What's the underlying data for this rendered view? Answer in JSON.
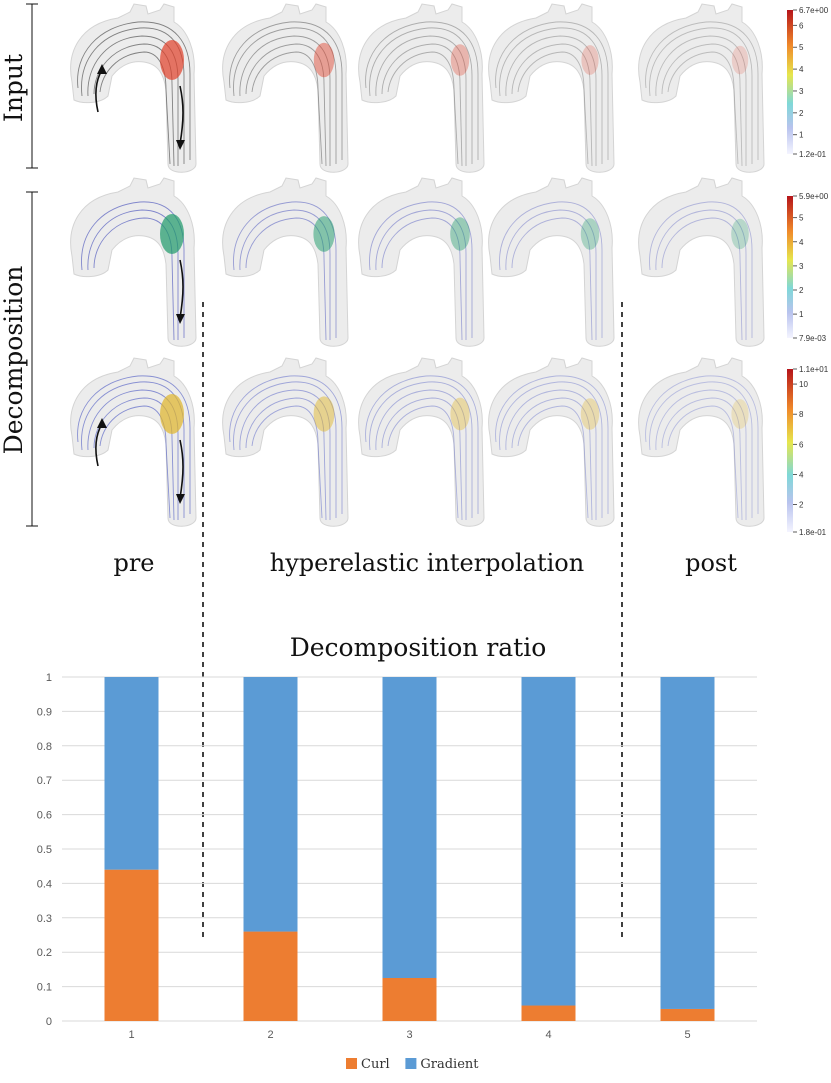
{
  "figure": {
    "row_labels": [
      "Input",
      "Decomposition"
    ],
    "column_labels": [
      "pre",
      "hyperelastic interpolation",
      "post"
    ],
    "colorbars": [
      {
        "ticks": [
          "6.7e+00",
          "6",
          "5",
          "4",
          "3",
          "2",
          "1",
          "1.2e-01"
        ],
        "values": [
          6.7,
          6,
          5,
          4,
          3,
          2,
          1,
          0.12
        ]
      },
      {
        "ticks": [
          "5.9e+00",
          "5",
          "4",
          "3",
          "2",
          "1",
          "7.9e-03"
        ],
        "values": [
          5.9,
          5,
          4,
          3,
          2,
          1,
          0.0079
        ]
      },
      {
        "ticks": [
          "1.1e+01",
          "10",
          "8",
          "6",
          "4",
          "2",
          "1.8e-01"
        ],
        "values": [
          11,
          10,
          8,
          6,
          4,
          2,
          0.18
        ]
      }
    ],
    "panel_rows": [
      {
        "stream_color": "#3a3a3a",
        "highlight": "#e1402a",
        "intensity": [
          1.0,
          0.55,
          0.3,
          0.15,
          0.05
        ]
      },
      {
        "stream_color": "#3b45b8",
        "highlight": "#1e9a6a",
        "intensity": [
          1.0,
          0.65,
          0.45,
          0.3,
          0.2
        ]
      },
      {
        "stream_color": "#4653c2",
        "highlight": "#e0b52a",
        "intensity": [
          1.0,
          0.6,
          0.4,
          0.3,
          0.15
        ]
      }
    ]
  },
  "chart_data": {
    "type": "bar",
    "stacked": true,
    "title": "Decomposition ratio",
    "categories": [
      "1",
      "2",
      "3",
      "4",
      "5"
    ],
    "series": [
      {
        "name": "Curl",
        "color": "#ed7d31",
        "values": [
          0.44,
          0.26,
          0.125,
          0.045,
          0.035
        ]
      },
      {
        "name": "Gradient",
        "color": "#5b9bd5",
        "values": [
          0.56,
          0.74,
          0.875,
          0.955,
          0.965
        ]
      }
    ],
    "yticks": [
      "0",
      "0.1",
      "0.2",
      "0.3",
      "0.4",
      "0.5",
      "0.6",
      "0.7",
      "0.8",
      "0.9",
      "1"
    ],
    "ylim": [
      0,
      1
    ],
    "grid": true,
    "legend_position": "bottom"
  }
}
